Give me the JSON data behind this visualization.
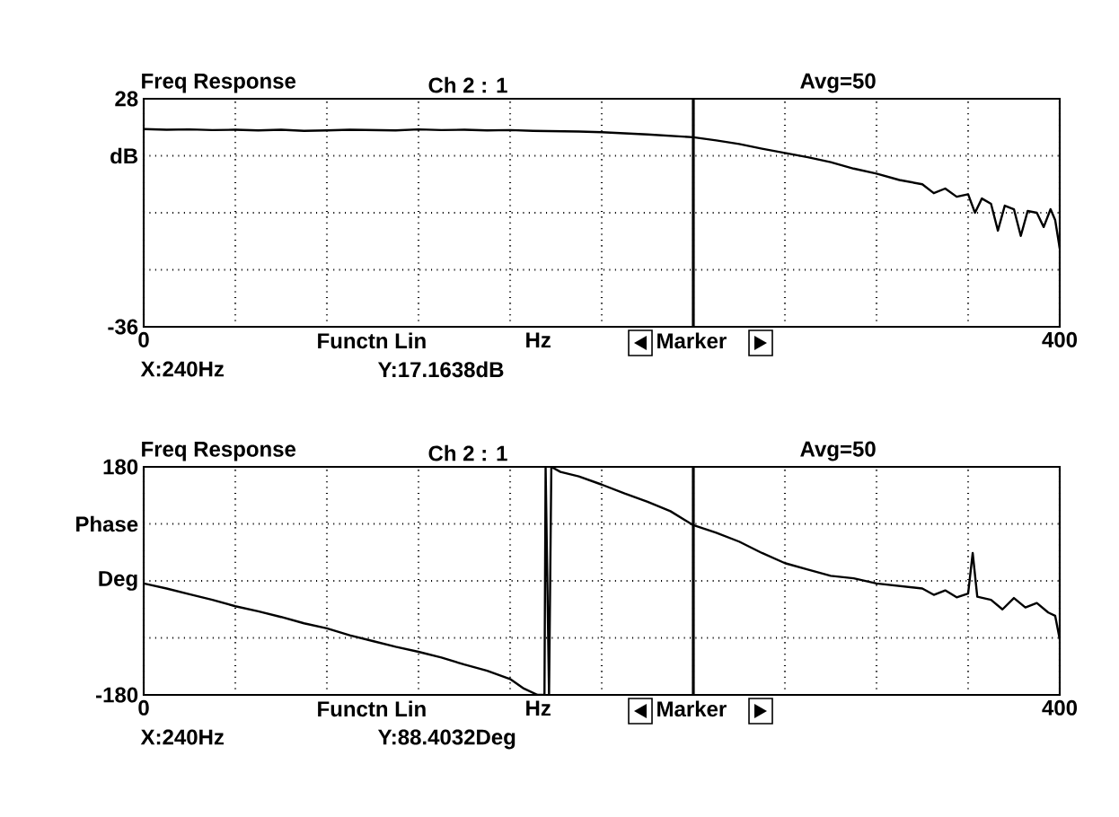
{
  "chart_data": [
    {
      "type": "line",
      "title": "Freq Response",
      "subtitle": "Ch 2 : 1",
      "xlabel": "Hz",
      "annotations": [
        "Avg=50",
        "Functn Lin",
        "Marker",
        "X:240Hz",
        "Y:17.1638dB"
      ],
      "xlim": [
        0,
        400
      ],
      "ylim": [
        -36,
        28
      ],
      "xticks": [
        0,
        {
          "value": 40,
          "label": null
        },
        {
          "value": 80,
          "label": null
        },
        {
          "value": 120,
          "label": null
        },
        {
          "value": 160,
          "label": null
        },
        {
          "value": 200,
          "label": null
        },
        {
          "value": 240,
          "label": null
        },
        {
          "value": 280,
          "label": null
        },
        {
          "value": 320,
          "label": null
        },
        {
          "value": 360,
          "label": null
        },
        400
      ],
      "yticks": [
        -36,
        {
          "value": -20,
          "label": null
        },
        {
          "value": -4,
          "label": null
        },
        {
          "value": 12,
          "label": "dB"
        },
        28
      ],
      "grid": true,
      "line_style": "solid",
      "ref_lines": [
        {
          "axis": "x",
          "value": 240,
          "color": "#000000"
        }
      ],
      "series": [
        {
          "color": "#000000",
          "x": [
            0,
            10,
            20,
            30,
            40,
            50,
            60,
            70,
            80,
            90,
            100,
            110,
            120,
            130,
            140,
            150,
            160,
            170,
            180,
            190,
            200,
            210,
            220,
            230,
            240,
            250,
            260,
            270,
            280,
            290,
            300,
            310,
            320,
            330,
            340,
            345,
            350,
            355,
            360,
            363,
            366,
            370,
            373,
            376,
            380,
            383,
            386,
            390,
            393,
            396,
            398,
            400
          ],
          "values": [
            19.5,
            19.3,
            19.4,
            19.2,
            19.3,
            19.1,
            19.3,
            19.0,
            19.1,
            19.3,
            19.2,
            19.1,
            19.4,
            19.2,
            19.3,
            19.1,
            19.2,
            19.0,
            18.9,
            18.8,
            18.6,
            18.3,
            18.0,
            17.6,
            17.2,
            16.3,
            15.3,
            14.0,
            12.8,
            11.6,
            10.2,
            8.4,
            7.0,
            5.2,
            4.0,
            1.5,
            2.8,
            0.5,
            1.2,
            -4,
            0,
            -1.5,
            -9,
            -2,
            -3,
            -10.5,
            -3.5,
            -4,
            -8,
            -3,
            -6,
            -14
          ]
        }
      ]
    },
    {
      "type": "line",
      "title": "Freq Response",
      "subtitle": "Ch 2 : 1",
      "xlabel": "Hz",
      "annotations": [
        "Avg=50",
        "Functn Lin",
        "Marker",
        "X:240Hz",
        "Y:88.4032Deg"
      ],
      "xlim": [
        0,
        400
      ],
      "ylim": [
        -180,
        180
      ],
      "xticks": [
        0,
        {
          "value": 40,
          "label": null
        },
        {
          "value": 80,
          "label": null
        },
        {
          "value": 120,
          "label": null
        },
        {
          "value": 160,
          "label": null
        },
        {
          "value": 200,
          "label": null
        },
        {
          "value": 240,
          "label": null
        },
        {
          "value": 280,
          "label": null
        },
        {
          "value": 320,
          "label": null
        },
        {
          "value": 360,
          "label": null
        },
        400
      ],
      "yticks": [
        -180,
        {
          "value": -90,
          "label": null
        },
        {
          "value": 0,
          "label": "Deg"
        },
        {
          "value": 90,
          "label": "Phase"
        },
        180
      ],
      "grid": true,
      "line_style": "solid",
      "ref_lines": [
        {
          "axis": "x",
          "value": 240,
          "color": "#000000"
        }
      ],
      "series": [
        {
          "color": "#000000",
          "x": [
            0,
            10,
            20,
            30,
            40,
            50,
            60,
            70,
            80,
            90,
            100,
            110,
            120,
            130,
            140,
            150,
            160,
            166,
            172,
            175,
            175.5,
            177,
            178,
            182,
            190,
            200,
            210,
            220,
            230,
            240,
            250,
            260,
            270,
            280,
            290,
            300,
            310,
            320,
            330,
            340,
            345,
            350,
            355,
            360,
            362,
            364,
            370,
            375,
            380,
            385,
            390,
            395,
            398,
            400
          ],
          "values": [
            -4,
            -12,
            -21,
            -30,
            -40,
            -48,
            -57,
            -67,
            -75,
            -86,
            -95,
            -104,
            -112,
            -121,
            -132,
            -142,
            -155,
            -170,
            -180,
            -180,
            180,
            -180,
            180,
            172,
            165,
            152,
            138,
            125,
            110,
            88,
            76,
            62,
            44,
            28,
            18,
            8,
            4,
            -4,
            -8,
            -12,
            -22,
            -15,
            -26,
            -20,
            44,
            -25,
            -30,
            -45,
            -27,
            -42,
            -35,
            -50,
            -55,
            -92
          ]
        }
      ]
    }
  ]
}
